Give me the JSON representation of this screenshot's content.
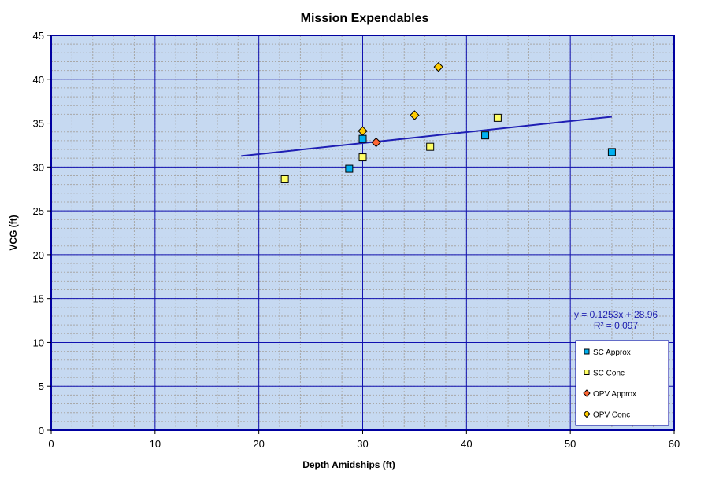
{
  "chart_data": {
    "type": "scatter",
    "title": "Mission Expendables",
    "xlabel": "Depth Amidships  (ft)",
    "ylabel": "VCG (ft)",
    "xlim": [
      0,
      60
    ],
    "ylim": [
      0,
      45
    ],
    "x_ticks": [
      0,
      10,
      20,
      30,
      40,
      50,
      60
    ],
    "y_ticks": [
      0,
      5,
      10,
      15,
      20,
      25,
      30,
      35,
      40,
      45
    ],
    "grid": {
      "major": true,
      "minor": true
    },
    "legend_position": "bottom-right",
    "series": [
      {
        "name": "SC Approx",
        "marker": "square",
        "color": "#00B0F0",
        "points": [
          {
            "x": 28.7,
            "y": 29.8
          },
          {
            "x": 30.0,
            "y": 33.2
          },
          {
            "x": 41.8,
            "y": 33.6
          },
          {
            "x": 54.0,
            "y": 31.7
          }
        ]
      },
      {
        "name": "SC Conc",
        "marker": "square",
        "color": "#FFFF66",
        "points": [
          {
            "x": 22.5,
            "y": 28.6
          },
          {
            "x": 30.0,
            "y": 31.1
          },
          {
            "x": 36.5,
            "y": 32.3
          },
          {
            "x": 43.0,
            "y": 35.6
          }
        ]
      },
      {
        "name": "OPV Approx",
        "marker": "diamond",
        "color": "#FF6633",
        "points": [
          {
            "x": 31.3,
            "y": 32.8
          }
        ]
      },
      {
        "name": "OPV Conc",
        "marker": "diamond",
        "color": "#FFCC00",
        "points": [
          {
            "x": 30.0,
            "y": 34.1
          },
          {
            "x": 35.0,
            "y": 35.9
          },
          {
            "x": 37.3,
            "y": 41.4
          }
        ]
      }
    ],
    "trendline": {
      "slope": 0.1253,
      "intercept": 28.96,
      "x_range": [
        18.3,
        54.0
      ],
      "color": "#1F1FB4",
      "equation_label": "y = 0.1253x + 28.96",
      "r2_label": "R² = 0.097"
    },
    "colors": {
      "plot_background": "#C6D9F1",
      "plot_border": "#0000A0",
      "major_grid": "#1010B0",
      "minor_grid": "#A8A8A8",
      "text_blue": "#2020B0"
    }
  }
}
